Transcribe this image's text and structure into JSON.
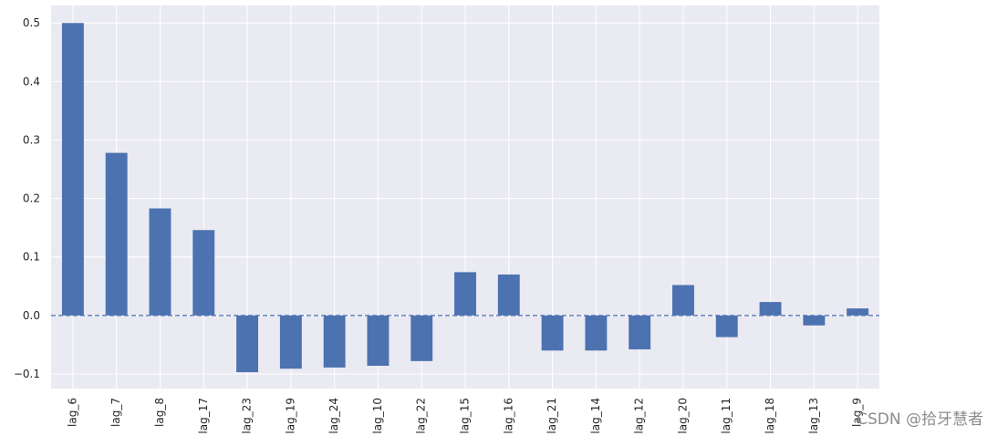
{
  "chart_data": {
    "type": "bar",
    "title": "",
    "xlabel": "",
    "ylabel": "",
    "categories": [
      "lag_6",
      "lag_7",
      "lag_8",
      "lag_17",
      "lag_23",
      "lag_19",
      "lag_24",
      "lag_10",
      "lag_22",
      "lag_15",
      "lag_16",
      "lag_21",
      "lag_14",
      "lag_12",
      "lag_20",
      "lag_11",
      "lag_18",
      "lag_13",
      "lag_9"
    ],
    "values": [
      0.5,
      0.278,
      0.183,
      0.146,
      -0.097,
      -0.091,
      -0.089,
      -0.086,
      -0.078,
      0.074,
      0.07,
      -0.06,
      -0.06,
      -0.058,
      0.052,
      -0.037,
      0.023,
      -0.017,
      0.012
    ],
    "ylim": [
      -0.125,
      0.53
    ],
    "yticks": [
      -0.1,
      0.0,
      0.1,
      0.2,
      0.3,
      0.4,
      0.5
    ],
    "ytick_labels": [
      "−0.1",
      "0.0",
      "0.1",
      "0.2",
      "0.3",
      "0.4",
      "0.5"
    ],
    "grid": true,
    "zero_line": "dashed",
    "colors": {
      "bar": "#4c72b0",
      "background": "#eaeaf2",
      "grid": "#ffffff",
      "zero_line": "#4c72b0"
    }
  },
  "watermark": "CSDN @拾牙慧者"
}
